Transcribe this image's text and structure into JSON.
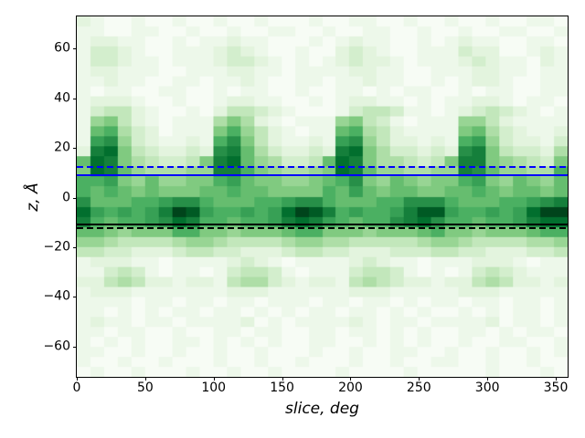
{
  "chart_data": {
    "type": "heatmap",
    "title": "",
    "xlabel": "slice, deg",
    "ylabel": "z, Å",
    "x_range": [
      0,
      360
    ],
    "y_range": [
      -73,
      73
    ],
    "x_ticks": [
      0,
      50,
      100,
      150,
      200,
      250,
      300,
      350
    ],
    "y_ticks": [
      60,
      40,
      20,
      0,
      -20,
      -40,
      -60
    ],
    "grid_cols": 36,
    "grid_rows": 36,
    "intensity_scale": [
      0,
      15
    ],
    "colormap": {
      "name": "Greens",
      "stops": [
        "#f7fcf5",
        "#e5f5e0",
        "#c7e9c0",
        "#a1d99b",
        "#74c476",
        "#41ab5d",
        "#238b45",
        "#006d2c",
        "#00441b"
      ]
    },
    "rows_hex": [
      "210010010010010001001100100100100110",
      "110011001001001100100110010010011001",
      "122110010112110001012110010121100110",
      "133210011123210010023210011132200121",
      "133211011123321010123221011123211021",
      "122111001112211011112211001112211011",
      "112110011011210011011211001012210011",
      "101100110010110010011010110010110011",
      "122210010012211001012211010112210110",
      "134421001024432100013443110123432101",
      "167421011157521011167431011166421111",
      "189532011179642101189542111178532112",
      "1ab63211219b7421121ab64221219a632213",
      "2cd7432232bc8532232cd7533232bc743325",
      "8dc7543347cd8653348dc7554347cc765437",
      "7dc8655566cc9765567dc8665566cb866559",
      "99a76866779a87766789b76876779a768768",
      "98987877788988777798a878877889878878",
      "b88899abb988899abb988899bbb988899abc",
      "da9a9acfea99a9adfec9a99aceea99a9adff",
      "c9899abdc99899acdca9899bcdb99899acdd",
      "887677799776777899777677789776777899",
      "665444456654444566554444456654444556",
      "443322234433222344332223334433222334",
      "122211011112321011112321101112221011",
      "113431011013443101113443101013432111",
      "224542212214553212214543221224542212",
      "122211111112221111112221111122211111",
      "111101101101101110110110101101101101",
      "110101011011010101101101010010101101",
      "121101101111201011112101101111201101",
      "110110010011011001101101010011010110",
      "101010011010101001100101010010011001",
      "110010010010010001001001100100100101",
      "100100100010010010001001001100100100",
      "010010001001001000010000100000100010"
    ],
    "hlines": [
      {
        "name": "upper-dashed-line",
        "y": 12.5,
        "color": "#0000ff",
        "style": "dashed"
      },
      {
        "name": "upper-solid-line",
        "y": 9.0,
        "color": "#0000ff",
        "style": "solid"
      },
      {
        "name": "lower-solid-line",
        "y": -11.0,
        "color": "#000000",
        "style": "solid"
      },
      {
        "name": "lower-dashed-line",
        "y": -12.5,
        "color": "#000000",
        "style": "dashed"
      }
    ],
    "legend": null,
    "grid": false
  }
}
